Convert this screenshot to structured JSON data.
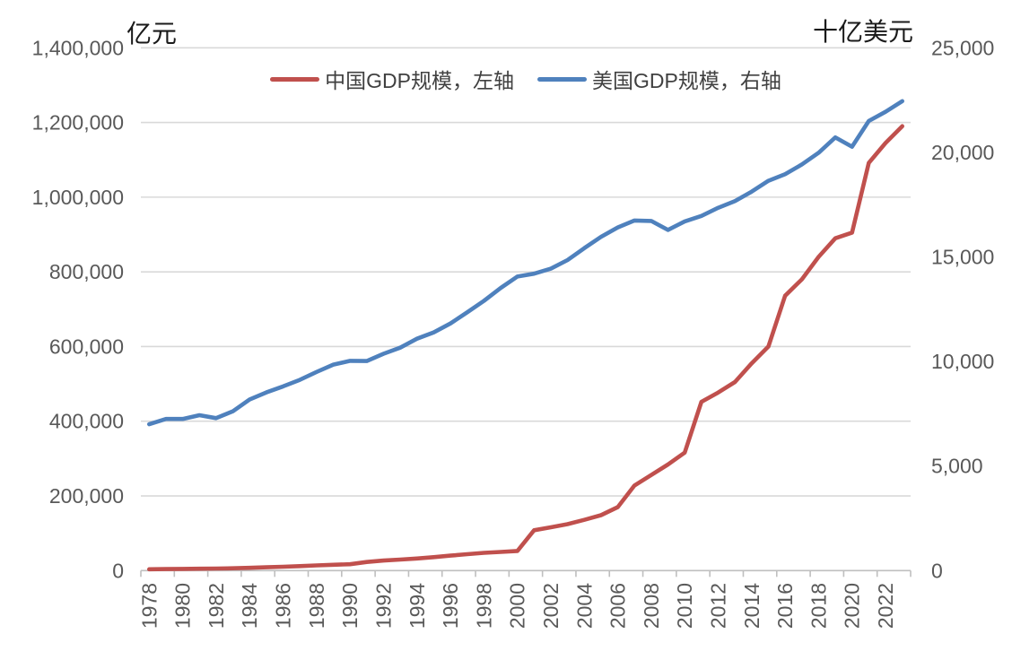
{
  "page": {
    "background": "#ffffff"
  },
  "chart_data": {
    "type": "line",
    "title": "",
    "grid": true,
    "legend_position": "top",
    "left_axis": {
      "title": "亿元",
      "min": 0,
      "max": 1400000,
      "step": 200000
    },
    "right_axis": {
      "title": "十亿美元",
      "min": 0,
      "max": 25000,
      "step": 5000
    },
    "x_label_every": 2,
    "x": [
      1978,
      1979,
      1980,
      1981,
      1982,
      1983,
      1984,
      1985,
      1986,
      1987,
      1988,
      1989,
      1990,
      1991,
      1992,
      1993,
      1994,
      1995,
      1996,
      1997,
      1998,
      1999,
      2000,
      2001,
      2002,
      2003,
      2004,
      2005,
      2006,
      2007,
      2008,
      2009,
      2010,
      2011,
      2012,
      2013,
      2014,
      2015,
      2016,
      2017,
      2018,
      2019,
      2020,
      2021,
      2022,
      2023
    ],
    "series": [
      {
        "name": "中国GDP规模，左轴",
        "axis": "left",
        "color": "#C0504D",
        "values": [
          3700,
          4100,
          4600,
          5000,
          5600,
          6300,
          7500,
          9000,
          10300,
          12000,
          14000,
          15500,
          17000,
          23000,
          27000,
          29500,
          32500,
          36000,
          40000,
          44000,
          47500,
          50000,
          52500,
          108000,
          116000,
          124500,
          136000,
          148500,
          170000,
          228000,
          256000,
          284000,
          316000,
          452000,
          477000,
          505000,
          555000,
          600000,
          736000,
          780000,
          840000,
          890000,
          905000,
          1092000,
          1145000,
          1190000
        ]
      },
      {
        "name": "美国GDP规模，右轴",
        "axis": "right",
        "color": "#4F81BD",
        "values": [
          7000,
          7250,
          7250,
          7430,
          7290,
          7620,
          8180,
          8520,
          8810,
          9120,
          9500,
          9850,
          10030,
          10020,
          10370,
          10660,
          11090,
          11390,
          11820,
          12350,
          12900,
          13510,
          14060,
          14200,
          14440,
          14850,
          15420,
          15960,
          16410,
          16740,
          16720,
          16290,
          16700,
          16960,
          17350,
          17670,
          18120,
          18640,
          18960,
          19420,
          19980,
          20715,
          20270,
          21500,
          21940,
          22450
        ]
      }
    ]
  }
}
